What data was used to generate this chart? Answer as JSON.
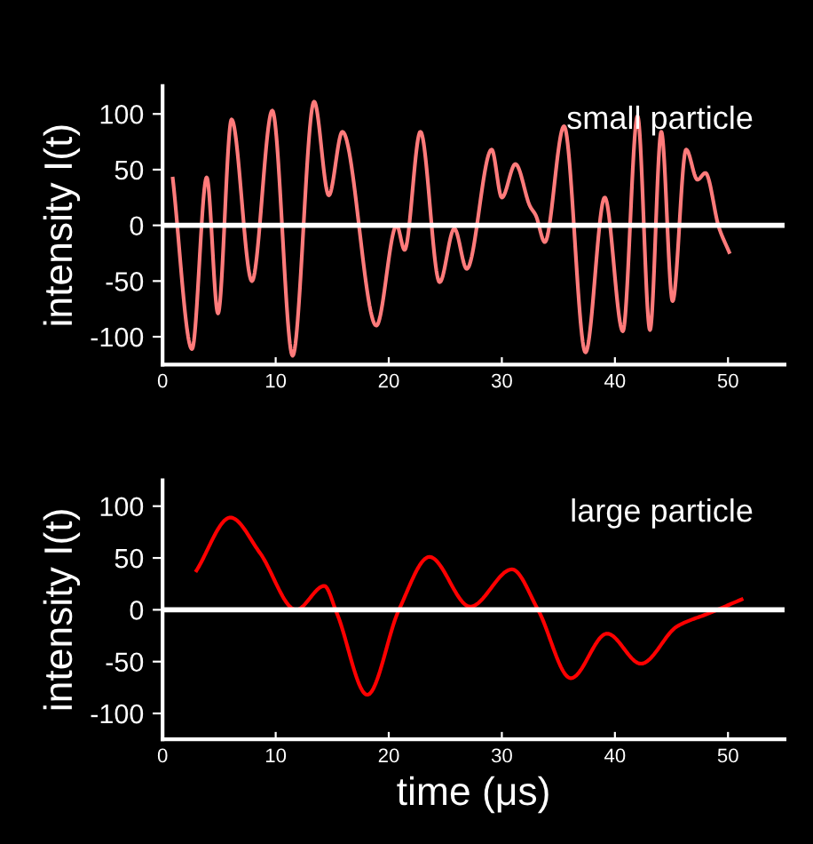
{
  "chart_data": [
    {
      "type": "line",
      "ylabel": "intensity I(t)",
      "annotations": [
        "small particle"
      ],
      "xlim": [
        0,
        55
      ],
      "ylim": [
        -125,
        125
      ],
      "xticks": [
        0,
        10,
        20,
        30,
        40,
        50
      ],
      "yticks": [
        -100,
        -50,
        0,
        50,
        100
      ],
      "grid": false,
      "legend": false,
      "ref_lines": [
        {
          "axis": "y",
          "value": 0,
          "color": "#ffffff"
        }
      ],
      "series": [
        {
          "color": "#ff7b7b",
          "x": [
            0.9,
            2.6,
            3.9,
            4.9,
            6.1,
            7.9,
            9.7,
            11.5,
            13.4,
            14.7,
            15.9,
            18.9,
            20.7,
            21.4,
            22.8,
            24.5,
            25.8,
            26.9,
            29.1,
            30.0,
            31.2,
            32.5,
            33.0,
            33.8,
            35.5,
            37.4,
            39.1,
            40.7,
            42.0,
            43.1,
            44.1,
            45.1,
            46.3,
            47.3,
            48.0,
            49.2,
            50.1
          ],
          "values": [
            42,
            -111,
            43,
            -79,
            95,
            -50,
            103,
            -117,
            111,
            27,
            84,
            -90,
            0,
            -22,
            84,
            -51,
            -3,
            -39,
            68,
            25,
            55,
            17,
            9,
            -15,
            89,
            -114,
            25,
            -95,
            98,
            -94,
            84,
            -68,
            68,
            41,
            47,
            -2,
            -24
          ]
        }
      ]
    },
    {
      "type": "line",
      "xlabel": "time (μs)",
      "ylabel": "intensity I(t)",
      "annotations": [
        "large particle"
      ],
      "xlim": [
        0,
        55
      ],
      "ylim": [
        -125,
        125
      ],
      "xticks": [
        0,
        10,
        20,
        30,
        40,
        50
      ],
      "yticks": [
        -100,
        -50,
        0,
        50,
        100
      ],
      "grid": false,
      "legend": false,
      "ref_lines": [
        {
          "axis": "y",
          "value": 0,
          "color": "#ffffff"
        }
      ],
      "series": [
        {
          "color": "#ff0000",
          "x": [
            3.0,
            6.0,
            8.6,
            11.8,
            14.3,
            15.4,
            18.1,
            20.9,
            23.6,
            27.2,
            30.9,
            33.2,
            36.1,
            39.3,
            42.3,
            45.5,
            48.4,
            51.2
          ],
          "values": [
            38,
            89,
            55,
            0,
            23,
            -3,
            -82,
            0,
            51,
            3,
            39,
            0,
            -66,
            -23,
            -52,
            -16,
            -3,
            10
          ]
        }
      ]
    }
  ]
}
